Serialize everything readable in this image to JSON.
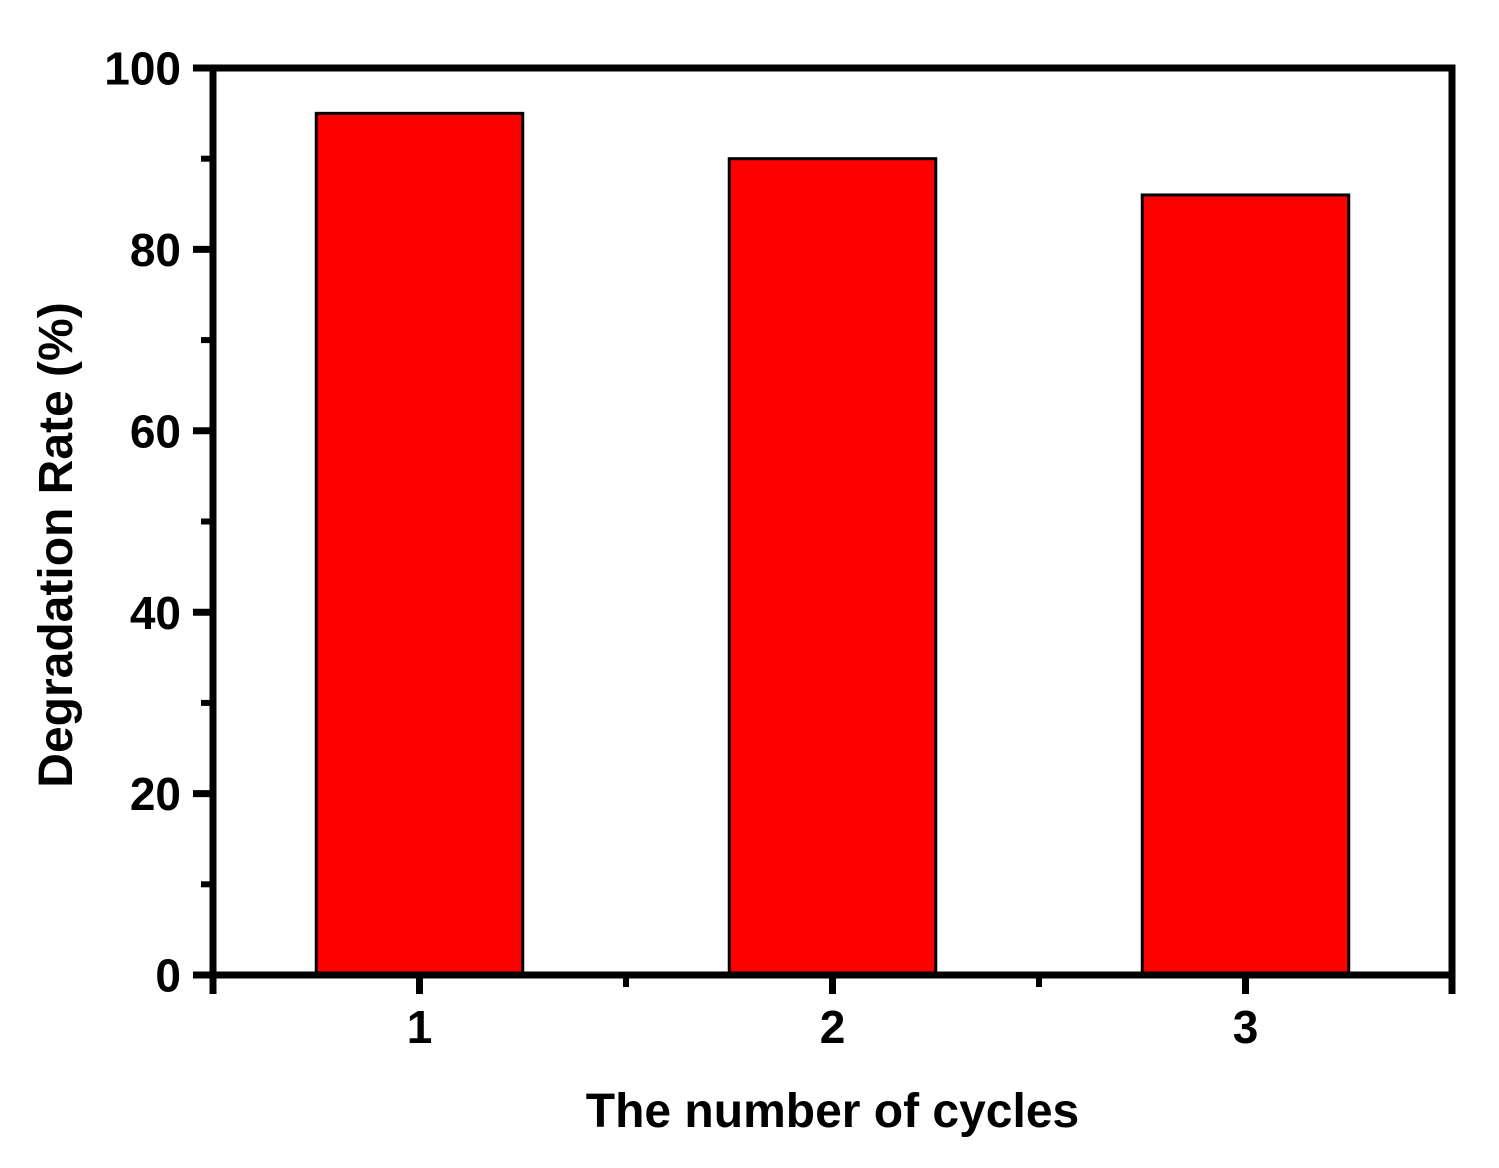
{
  "chart": {
    "background_color": "#ffffff",
    "axis_color": "#000000"
  },
  "chart_data": {
    "type": "bar",
    "title": "",
    "categories": [
      "1",
      "2",
      "3"
    ],
    "values": [
      95,
      90,
      86
    ],
    "xlabel": "The number of cycles",
    "ylabel": "Degradation Rate (%)",
    "ylim": [
      0,
      100
    ],
    "xlim": [
      0.5,
      3.5
    ],
    "y_major_ticks": [
      "0",
      "20",
      "40",
      "60",
      "80",
      "100"
    ],
    "y_major_tick_values": [
      0,
      20,
      40,
      60,
      80,
      100
    ],
    "y_minor_tick_values": [
      10,
      30,
      50,
      70,
      90
    ],
    "x_minor_tick_values": [
      1.5,
      2.5
    ],
    "bar_width_units": 0.5,
    "bar_fill": "#ff0000",
    "bar_stroke": "#000000",
    "grid": false,
    "legend": null,
    "frame": "full-box",
    "tick_direction": "out"
  }
}
